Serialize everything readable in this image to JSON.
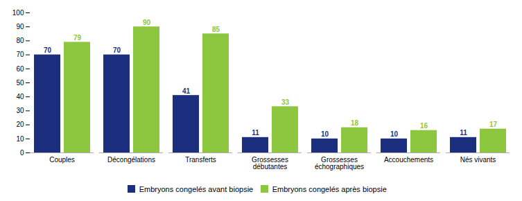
{
  "chart_data": {
    "type": "bar",
    "categories": [
      "Couples",
      "Décongélations",
      "Transferts",
      "Grossesses\ndébutantes",
      "Grossesses\néchographiques",
      "Accouchements",
      "Nés vivants"
    ],
    "series": [
      {
        "name": "Embryons congelés avant biopsie",
        "color": "#1b2f7e",
        "values": [
          70,
          70,
          41,
          11,
          10,
          10,
          11
        ]
      },
      {
        "name": "Embryons congelés après biopsie",
        "color": "#8dc63f",
        "values": [
          79,
          90,
          85,
          33,
          18,
          16,
          17
        ]
      }
    ],
    "ylim": [
      0,
      100
    ],
    "yticks": [
      0,
      10,
      20,
      30,
      40,
      50,
      60,
      70,
      80,
      90,
      100
    ],
    "data_labels": true,
    "legend": "bottom",
    "grid": false
  }
}
